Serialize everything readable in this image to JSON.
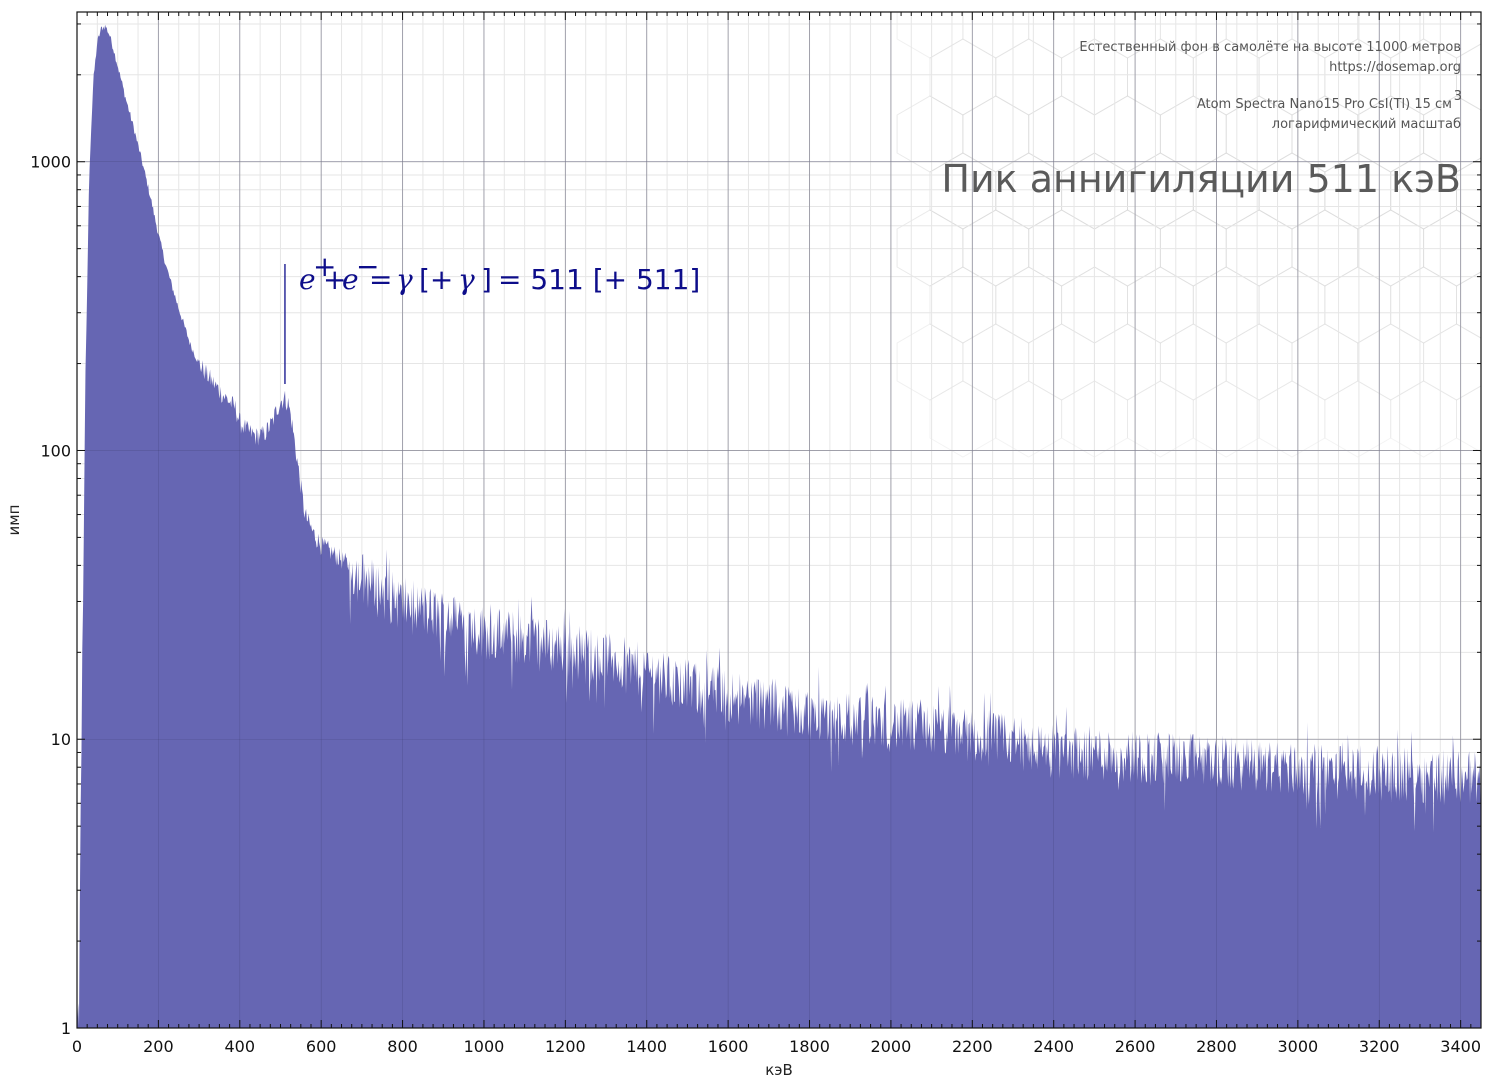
{
  "chart_data": {
    "type": "area",
    "title": "Пик аннигиляции 511 кэВ",
    "info_lines": [
      "Естественный фон в самолёте на высоте 11000 метров",
      "https://dosemap.org",
      "Atom Spectra Nano15 Pro CsI(Tl) 15 см",
      "логарифмический масштаб"
    ],
    "info_superscript": "3",
    "xlabel": "кэВ",
    "ylabel": "имп",
    "xlim": [
      0,
      3450
    ],
    "ylim": [
      1,
      3300
    ],
    "y_scale": "log",
    "grid": true,
    "x_ticks": [
      "0",
      "200",
      "400",
      "600",
      "800",
      "1000",
      "1200",
      "1400",
      "1600",
      "1800",
      "2000",
      "2200",
      "2400",
      "2600",
      "2800",
      "3000",
      "3200",
      "3400"
    ],
    "y_ticks": [
      "1",
      "10",
      "100",
      "1000"
    ],
    "fill_color": "#6666b3",
    "annotation": {
      "x": 511,
      "text_e": "e",
      "text_plus": "+",
      "text_minus": "−",
      "text_eq": "=",
      "text_gamma": "γ",
      "text_mid": "[+",
      "text_close": "]",
      "text_tail": "= 511 [+ 511]",
      "color": "#0d0d8a"
    },
    "series": [
      {
        "x": [
          5,
          10,
          15,
          20,
          30,
          40,
          50,
          60,
          70,
          80,
          90,
          100,
          120,
          140,
          160,
          180,
          200,
          220,
          250,
          280,
          300,
          330,
          360,
          390,
          400,
          420,
          440,
          460,
          480,
          490,
          500,
          510,
          520,
          530,
          540,
          550,
          560,
          580,
          600,
          650,
          700,
          750,
          800,
          850,
          900,
          1000,
          1100,
          1200,
          1300,
          1400,
          1500,
          1600,
          1700,
          1800,
          1900,
          2000,
          2100,
          2200,
          2300,
          2400,
          2500,
          2600,
          2700,
          2800,
          2900,
          3000,
          3100,
          3200,
          3300,
          3400,
          3450
        ],
        "values": [
          1,
          8,
          30,
          150,
          900,
          1900,
          2600,
          2900,
          2950,
          2750,
          2450,
          2150,
          1650,
          1300,
          1000,
          760,
          560,
          430,
          310,
          230,
          200,
          175,
          155,
          140,
          125,
          117,
          112,
          114,
          125,
          138,
          148,
          152,
          145,
          120,
          95,
          75,
          60,
          52,
          47,
          42,
          37,
          33,
          30,
          28.5,
          27,
          24,
          22.5,
          21,
          19.5,
          17.5,
          15.5,
          14.5,
          13.5,
          12.5,
          12,
          11.5,
          11,
          10.5,
          10,
          9.3,
          9.1,
          8.9,
          8.7,
          8.5,
          8.3,
          8,
          7.9,
          7.8,
          7.7,
          7.6,
          7.5
        ]
      }
    ]
  }
}
